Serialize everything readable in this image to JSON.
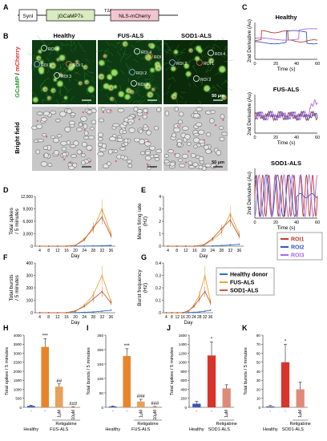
{
  "panelA": {
    "letter": "A",
    "boxes": [
      "SynI",
      "jGCaMP7s",
      "NLS-mCherry"
    ],
    "t2a": "T2A"
  },
  "panelB": {
    "letter": "B",
    "columns": [
      "Healthy",
      "FUS-ALS",
      "SOD1-ALS"
    ],
    "row_label_fluor_a": "GCaMP",
    "row_label_fluor_sep": " / ",
    "row_label_fluor_b": "mCherry",
    "row_label_bright": "Bright field",
    "roi_labels": [
      "ROI 1",
      "ROI 2",
      "ROI 3",
      "ROI 4"
    ],
    "scale_bar": "50 μm"
  },
  "panelC": {
    "letter": "C",
    "titles": [
      "Healthy",
      "FUS-ALS",
      "SOD1-ALS"
    ],
    "ylabel": "2nd Derivative (Au)",
    "xlabel": "Time (s)",
    "xticks": [
      "0",
      "20",
      "40",
      "60"
    ],
    "legend": [
      "ROI1",
      "ROI2",
      "ROI3"
    ],
    "colors": [
      "#c0392b",
      "#3a55b4",
      "#a56ce0"
    ]
  },
  "panelD": {
    "letter": "D",
    "ylabel_1": "Total spikes",
    "ylabel_2": "/ 5 minutes",
    "yticks": [
      "0",
      "3,000",
      "6,000",
      "9,000",
      "12,000"
    ]
  },
  "panelE": {
    "letter": "E",
    "ylabel_1": "Mean firing rate",
    "ylabel_2": "(Hz)",
    "yticks": [
      "0",
      "1",
      "2",
      "3",
      "4"
    ]
  },
  "panelF": {
    "letter": "F",
    "ylabel_1": "Total bursts",
    "ylabel_2": "/ 5 minutes",
    "yticks": [
      "0",
      "100",
      "200",
      "300",
      "400"
    ]
  },
  "panelG": {
    "letter": "G",
    "ylabel_1": "Burst frequency",
    "ylabel_2": "(Hz)",
    "yticks": [
      "0",
      "0.1",
      "0.2",
      "0.3",
      "0.4"
    ]
  },
  "timecourse": {
    "days": [
      "4",
      "8",
      "12",
      "16",
      "20",
      "24",
      "28",
      "32",
      "36"
    ],
    "xlabel": "Day",
    "legend": [
      "Healthy donor",
      "FUS-ALS",
      "SOD1-ALS"
    ],
    "colors": [
      "#2f6fc0",
      "#e8a33d",
      "#c0603c"
    ]
  },
  "panelH": {
    "letter": "H",
    "ylabel": "Total spikes / 5 minutes",
    "yticks": [
      "0",
      "500",
      "1000",
      "1500",
      "2000",
      "2500",
      "3000",
      "3500",
      "4000"
    ],
    "bars": [
      {
        "treat": "-",
        "color": "#3a55b4",
        "sig": ""
      },
      {
        "treat": "-",
        "color": "#e8852a",
        "sig": "***"
      },
      {
        "treat": "1μM",
        "color": "#e8a05a",
        "sig": "##"
      },
      {
        "treat": "10μM",
        "color": "#e8a05a",
        "sig": "###"
      }
    ],
    "group": "Retigabine",
    "cat1": "Healthy",
    "cat2": "FUS-ALS"
  },
  "panelI": {
    "letter": "I",
    "ylabel": "Total bursts / 5 minutes",
    "yticks": [
      "0",
      "50",
      "100",
      "150",
      "200",
      "250"
    ],
    "bars": [
      {
        "treat": "-",
        "color": "#3a55b4",
        "sig": ""
      },
      {
        "treat": "-",
        "color": "#e8852a",
        "sig": "***"
      },
      {
        "treat": "1μM",
        "color": "#e8a05a",
        "sig": "###"
      },
      {
        "treat": "10μM",
        "color": "#e8a05a",
        "sig": "###"
      }
    ],
    "group": "Retigabine",
    "cat1": "Healthy",
    "cat2": "FUS-ALS"
  },
  "panelJ": {
    "letter": "J",
    "ylabel": "Total spikes / 5 minutes",
    "yticks": [
      "0",
      "200",
      "400",
      "600",
      "800",
      "1000",
      "1200",
      "1400",
      "1600"
    ],
    "bars": [
      {
        "treat": "-",
        "color": "#3a55b4",
        "sig": ""
      },
      {
        "treat": "-",
        "color": "#d9342b",
        "sig": "*"
      },
      {
        "treat": "1μM",
        "color": "#e08a7a",
        "sig": ""
      }
    ],
    "group": "Retigabine",
    "cat1": "Healthy",
    "cat2": "SOD1-ALS"
  },
  "panelK": {
    "letter": "K",
    "ylabel": "Total bursts / 5 minutes",
    "yticks": [
      "0",
      "10",
      "20",
      "30",
      "40",
      "50",
      "60",
      "70",
      "80"
    ],
    "bars": [
      {
        "treat": "-",
        "color": "#3a55b4",
        "sig": ""
      },
      {
        "treat": "-",
        "color": "#d9342b",
        "sig": "*"
      },
      {
        "treat": "1μM",
        "color": "#e08a7a",
        "sig": ""
      }
    ],
    "group": "Retigabine",
    "cat1": "Healthy",
    "cat2": "SOD1-ALS"
  },
  "chart_data": [
    {
      "type": "line",
      "panel": "D",
      "x": [
        4,
        8,
        12,
        16,
        20,
        24,
        28,
        32,
        36
      ],
      "ylim": [
        0,
        12000
      ],
      "series": [
        {
          "name": "Healthy donor",
          "values": [
            0,
            0,
            0,
            0,
            10,
            30,
            60,
            120,
            200
          ]
        },
        {
          "name": "FUS-ALS",
          "values": [
            0,
            0,
            0,
            0,
            100,
            1800,
            4000,
            9000,
            3000
          ]
        },
        {
          "name": "SOD1-ALS",
          "values": [
            0,
            0,
            0,
            0,
            200,
            1500,
            4500,
            7000,
            2500
          ]
        }
      ]
    },
    {
      "type": "line",
      "panel": "E",
      "x": [
        4,
        8,
        12,
        16,
        20,
        24,
        28,
        32,
        36
      ],
      "ylim": [
        0,
        4
      ],
      "series": [
        {
          "name": "Healthy donor",
          "values": [
            0,
            0,
            0,
            0,
            0.01,
            0.02,
            0.05,
            0.1,
            0.15
          ]
        },
        {
          "name": "FUS-ALS",
          "values": [
            0,
            0,
            0,
            0,
            0.05,
            0.5,
            1.1,
            2.6,
            1.0
          ]
        },
        {
          "name": "SOD1-ALS",
          "values": [
            0,
            0,
            0,
            0,
            0.1,
            0.6,
            1.4,
            2.1,
            0.8
          ]
        }
      ]
    },
    {
      "type": "line",
      "panel": "F",
      "x": [
        4,
        8,
        12,
        16,
        20,
        24,
        28,
        32,
        36
      ],
      "ylim": [
        0,
        400
      ],
      "series": [
        {
          "name": "Healthy donor",
          "values": [
            0,
            0,
            0,
            0,
            1,
            3,
            6,
            12,
            20
          ]
        },
        {
          "name": "FUS-ALS",
          "values": [
            0,
            0,
            0,
            0,
            10,
            60,
            140,
            300,
            90
          ]
        },
        {
          "name": "SOD1-ALS",
          "values": [
            0,
            0,
            0,
            0,
            15,
            50,
            110,
            170,
            80
          ]
        }
      ]
    },
    {
      "type": "line",
      "panel": "G",
      "x": [
        4,
        8,
        12,
        16,
        20,
        24,
        28,
        32,
        36
      ],
      "ylim": [
        0,
        0.4
      ],
      "series": [
        {
          "name": "Healthy donor",
          "values": [
            0,
            0,
            0,
            0,
            0.001,
            0.003,
            0.006,
            0.012,
            0.02
          ]
        },
        {
          "name": "FUS-ALS",
          "values": [
            0,
            0,
            0,
            0,
            0.01,
            0.06,
            0.14,
            0.3,
            0.09
          ]
        },
        {
          "name": "SOD1-ALS",
          "values": [
            0,
            0,
            0,
            0,
            0.015,
            0.05,
            0.11,
            0.17,
            0.08
          ]
        }
      ]
    },
    {
      "type": "bar",
      "panel": "H",
      "categories": [
        "Healthy -",
        "FUS-ALS -",
        "FUS-ALS Retigabine 1μM",
        "FUS-ALS Retigabine 10μM"
      ],
      "values": [
        80,
        3350,
        1150,
        20
      ],
      "errors": [
        40,
        450,
        150,
        10
      ],
      "ylim": [
        0,
        4000
      ]
    },
    {
      "type": "bar",
      "panel": "I",
      "categories": [
        "Healthy -",
        "FUS-ALS -",
        "FUS-ALS Retigabine 1μM",
        "FUS-ALS Retigabine 10μM"
      ],
      "values": [
        3,
        178,
        20,
        2
      ],
      "errors": [
        2,
        25,
        8,
        1
      ],
      "ylim": [
        0,
        250
      ]
    },
    {
      "type": "bar",
      "panel": "J",
      "categories": [
        "Healthy -",
        "SOD1-ALS -",
        "SOD1-ALS Retigabine 1μM"
      ],
      "values": [
        80,
        1150,
        420
      ],
      "errors": [
        50,
        300,
        80
      ],
      "ylim": [
        0,
        1600
      ]
    },
    {
      "type": "bar",
      "panel": "K",
      "categories": [
        "Healthy -",
        "SOD1-ALS -",
        "SOD1-ALS Retigabine 1μM"
      ],
      "values": [
        1,
        50,
        20
      ],
      "errors": [
        1,
        20,
        8
      ],
      "ylim": [
        0,
        80
      ]
    }
  ]
}
